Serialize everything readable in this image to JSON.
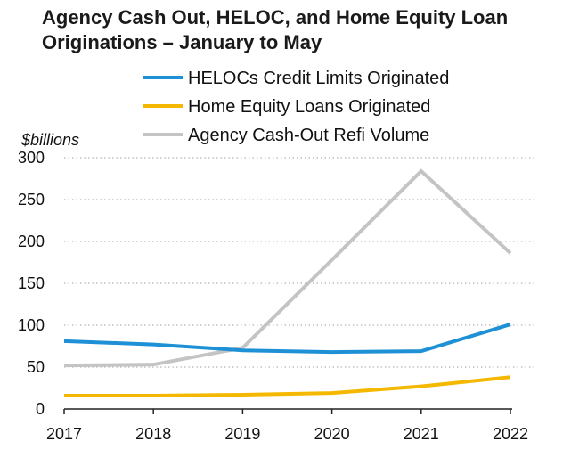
{
  "chart_data": {
    "type": "line",
    "title": "Agency Cash Out, HELOC, and Home Equity Loan Originations – January to May",
    "ylabel": "$billions",
    "xlabel": "",
    "categories": [
      "2017",
      "2018",
      "2019",
      "2020",
      "2021",
      "2022"
    ],
    "ylim": [
      0,
      300
    ],
    "yticks": [
      0,
      50,
      100,
      150,
      200,
      250,
      300
    ],
    "grid": "horizontal dotted",
    "legend_position": "top",
    "series": [
      {
        "name": "HELOCs Credit Limits Originated",
        "color": "#1E90D6",
        "values": [
          81,
          77,
          70,
          68,
          69,
          101
        ]
      },
      {
        "name": "Home Equity Loans Originated",
        "color": "#F5B800",
        "values": [
          16,
          16,
          17,
          19,
          27,
          38
        ]
      },
      {
        "name": "Agency Cash-Out Refi Volume",
        "color": "#C4C4C4",
        "values": [
          52,
          53,
          73,
          178,
          284,
          186
        ]
      }
    ]
  }
}
